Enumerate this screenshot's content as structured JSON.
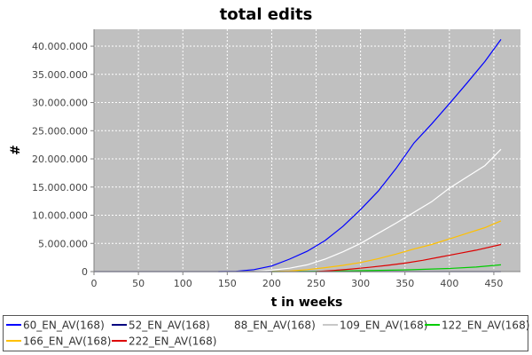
{
  "chart_data": {
    "type": "line",
    "title": "total edits",
    "xlabel": "t in weeks",
    "ylabel": "#",
    "xlim": [
      0,
      480
    ],
    "ylim": [
      0,
      43000000
    ],
    "x_ticks": [
      0,
      50,
      100,
      150,
      200,
      250,
      300,
      350,
      400,
      450
    ],
    "x_tick_labels": [
      "0",
      "50",
      "100",
      "150",
      "200",
      "250",
      "300",
      "350",
      "400",
      "450"
    ],
    "y_ticks": [
      0,
      5000000,
      10000000,
      15000000,
      20000000,
      25000000,
      30000000,
      35000000,
      40000000
    ],
    "y_tick_labels": [
      "0",
      "5.000.000",
      "10.000.000",
      "15.000.000",
      "20.000.000",
      "25.000.000",
      "30.000.000",
      "35.000.000",
      "40.000.000"
    ],
    "grid": true,
    "plot_background": "#c0c0c0",
    "legend_position": "bottom",
    "series": [
      {
        "name": "60_EN_AV(168)",
        "color": "#0000ff",
        "x": [
          140,
          160,
          180,
          200,
          220,
          240,
          260,
          280,
          300,
          320,
          340,
          360,
          380,
          400,
          420,
          440,
          458
        ],
        "y": [
          0,
          50000,
          350000,
          1000000,
          2200000,
          3600000,
          5500000,
          8000000,
          11000000,
          14300000,
          18300000,
          22800000,
          26200000,
          29800000,
          33500000,
          37300000,
          41200000
        ]
      },
      {
        "name": "52_EN_AV(168)",
        "color": "#000080",
        "x": [
          0,
          100,
          200,
          300,
          400,
          458
        ],
        "y": [
          0,
          0,
          0,
          0,
          0,
          0
        ]
      },
      {
        "name": "88_EN_AV(168)",
        "color": "#ffffff",
        "x": [
          180,
          200,
          220,
          240,
          260,
          280,
          300,
          320,
          340,
          360,
          380,
          400,
          420,
          440,
          458
        ],
        "y": [
          0,
          250000,
          600000,
          1200000,
          2200000,
          3500000,
          5000000,
          6800000,
          8600000,
          10500000,
          12400000,
          14800000,
          16800000,
          18800000,
          21700000
        ]
      },
      {
        "name": "109_EN_AV(168)",
        "color": "#c8c8c8",
        "x": [
          0,
          100,
          200,
          300,
          400,
          458
        ],
        "y": [
          0,
          0,
          0,
          0,
          0,
          0
        ]
      },
      {
        "name": "122_EN_AV(168)",
        "color": "#00cc00",
        "x": [
          200,
          250,
          300,
          350,
          400,
          430,
          458
        ],
        "y": [
          0,
          50000,
          150000,
          300000,
          550000,
          800000,
          1200000
        ]
      },
      {
        "name": "166_EN_AV(168)",
        "color": "#ffc000",
        "x": [
          200,
          220,
          240,
          260,
          280,
          300,
          320,
          340,
          360,
          380,
          400,
          420,
          440,
          458
        ],
        "y": [
          0,
          100000,
          350000,
          700000,
          1100000,
          1600000,
          2300000,
          3100000,
          4000000,
          4800000,
          5800000,
          6800000,
          7800000,
          9000000
        ]
      },
      {
        "name": "222_EN_AV(168)",
        "color": "#dd0000",
        "x": [
          250,
          270,
          290,
          310,
          330,
          350,
          370,
          390,
          410,
          430,
          458
        ],
        "y": [
          0,
          200000,
          450000,
          750000,
          1100000,
          1500000,
          2000000,
          2600000,
          3200000,
          3800000,
          4800000
        ]
      }
    ]
  }
}
